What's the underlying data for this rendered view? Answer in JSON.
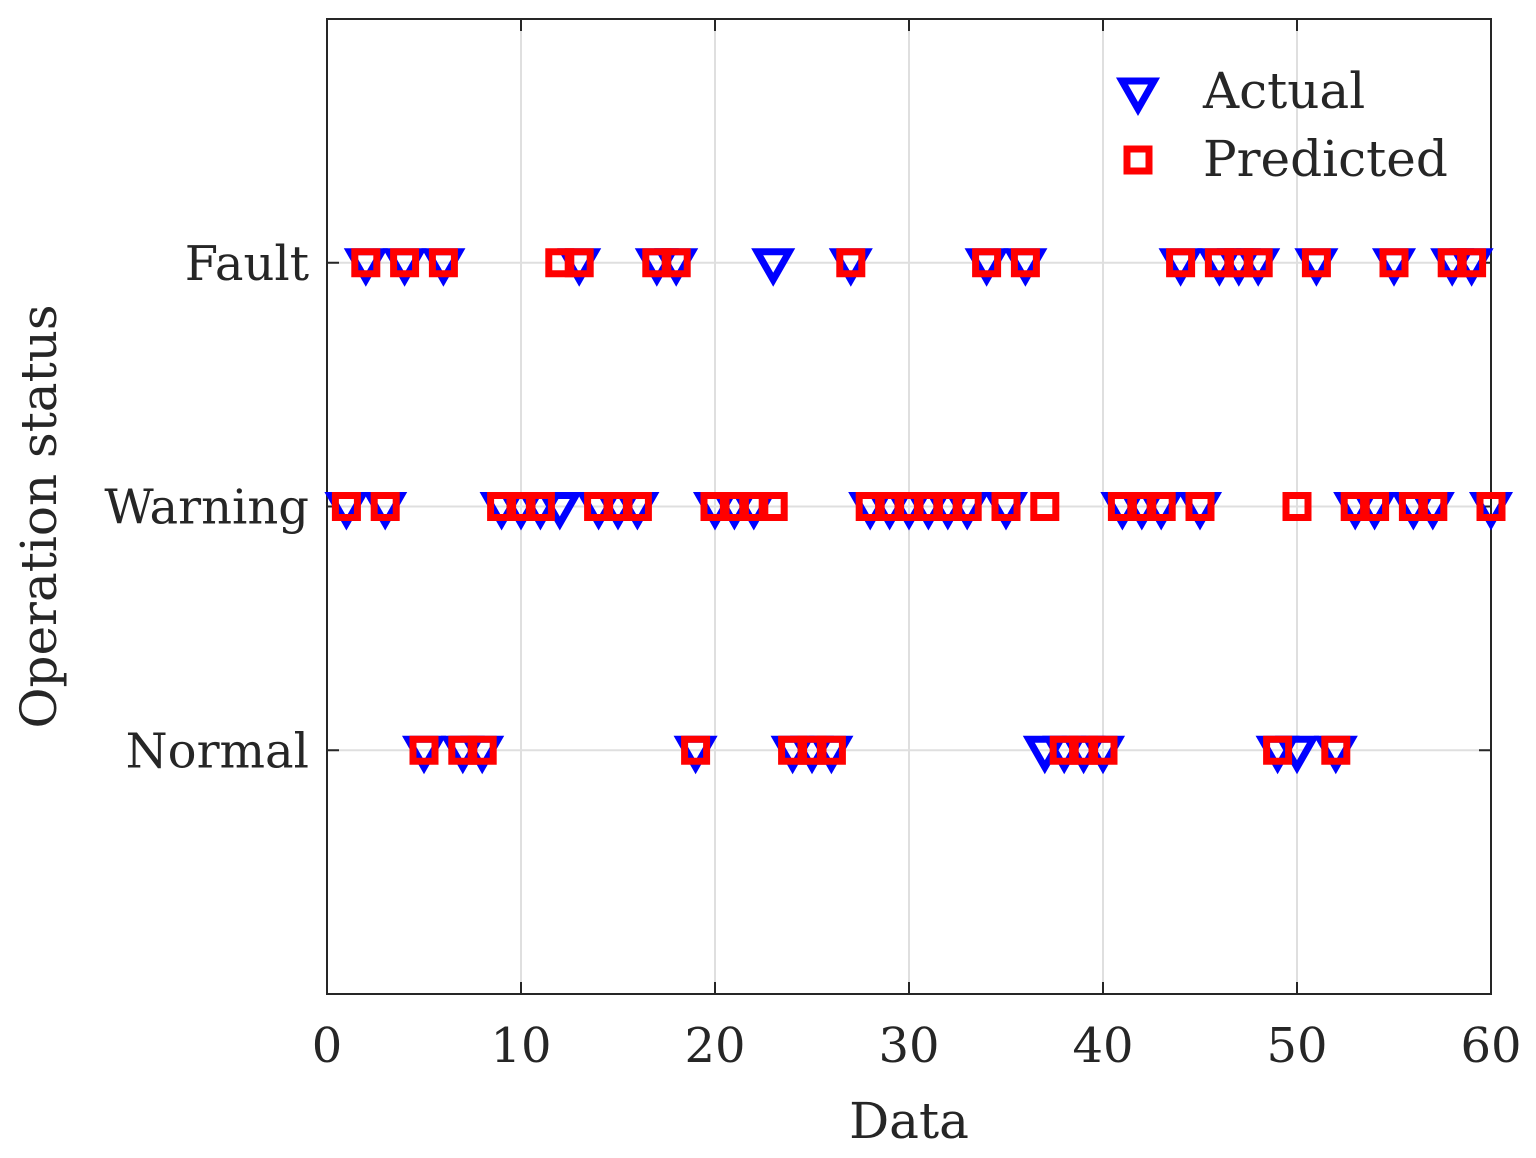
{
  "chart_data": {
    "type": "scatter",
    "title": "",
    "xlabel": "Data",
    "ylabel": "Operation status",
    "xlim": [
      0,
      60
    ],
    "ylim": [
      0,
      4
    ],
    "x_ticks": [
      0,
      10,
      20,
      30,
      40,
      50,
      60
    ],
    "y_ticks": [
      1,
      2,
      3
    ],
    "y_tick_labels": [
      "Normal",
      "Warning",
      "Fault"
    ],
    "grid": true,
    "legend_position": "top-right",
    "series": [
      {
        "name": "Actual",
        "marker": "triangle-down",
        "color": "#0000ff",
        "points": [
          [
            1,
            2
          ],
          [
            2,
            3
          ],
          [
            3,
            2
          ],
          [
            4,
            3
          ],
          [
            5,
            1
          ],
          [
            6,
            3
          ],
          [
            7,
            1
          ],
          [
            8,
            1
          ],
          [
            9,
            2
          ],
          [
            10,
            2
          ],
          [
            11,
            2
          ],
          [
            12,
            2
          ],
          [
            13,
            3
          ],
          [
            14,
            2
          ],
          [
            15,
            2
          ],
          [
            16,
            2
          ],
          [
            17,
            3
          ],
          [
            18,
            3
          ],
          [
            19,
            1
          ],
          [
            20,
            2
          ],
          [
            21,
            2
          ],
          [
            22,
            2
          ],
          [
            23,
            3
          ],
          [
            24,
            1
          ],
          [
            25,
            1
          ],
          [
            26,
            1
          ],
          [
            27,
            3
          ],
          [
            28,
            2
          ],
          [
            29,
            2
          ],
          [
            30,
            2
          ],
          [
            31,
            2
          ],
          [
            32,
            2
          ],
          [
            33,
            2
          ],
          [
            34,
            3
          ],
          [
            35,
            2
          ],
          [
            36,
            3
          ],
          [
            37,
            1
          ],
          [
            38,
            1
          ],
          [
            39,
            1
          ],
          [
            40,
            1
          ],
          [
            41,
            2
          ],
          [
            42,
            2
          ],
          [
            43,
            2
          ],
          [
            44,
            3
          ],
          [
            45,
            2
          ],
          [
            46,
            3
          ],
          [
            47,
            3
          ],
          [
            48,
            3
          ],
          [
            49,
            1
          ],
          [
            50,
            1
          ],
          [
            51,
            3
          ],
          [
            52,
            1
          ],
          [
            53,
            2
          ],
          [
            54,
            2
          ],
          [
            55,
            3
          ],
          [
            56,
            2
          ],
          [
            57,
            2
          ],
          [
            58,
            3
          ],
          [
            59,
            3
          ],
          [
            60,
            2
          ]
        ]
      },
      {
        "name": "Predicted",
        "marker": "square",
        "color": "#ff0000",
        "points": [
          [
            1,
            2
          ],
          [
            2,
            3
          ],
          [
            3,
            2
          ],
          [
            4,
            3
          ],
          [
            5,
            1
          ],
          [
            6,
            3
          ],
          [
            7,
            1
          ],
          [
            8,
            1
          ],
          [
            9,
            2
          ],
          [
            10,
            2
          ],
          [
            11,
            2
          ],
          [
            12,
            3
          ],
          [
            13,
            3
          ],
          [
            14,
            2
          ],
          [
            15,
            2
          ],
          [
            16,
            2
          ],
          [
            17,
            3
          ],
          [
            18,
            3
          ],
          [
            19,
            1
          ],
          [
            20,
            2
          ],
          [
            21,
            2
          ],
          [
            22,
            2
          ],
          [
            23,
            2
          ],
          [
            24,
            1
          ],
          [
            25,
            1
          ],
          [
            26,
            1
          ],
          [
            27,
            3
          ],
          [
            28,
            2
          ],
          [
            29,
            2
          ],
          [
            30,
            2
          ],
          [
            31,
            2
          ],
          [
            32,
            2
          ],
          [
            33,
            2
          ],
          [
            34,
            3
          ],
          [
            35,
            2
          ],
          [
            36,
            3
          ],
          [
            37,
            2
          ],
          [
            38,
            1
          ],
          [
            39,
            1
          ],
          [
            40,
            1
          ],
          [
            41,
            2
          ],
          [
            42,
            2
          ],
          [
            43,
            2
          ],
          [
            44,
            3
          ],
          [
            45,
            2
          ],
          [
            46,
            3
          ],
          [
            47,
            3
          ],
          [
            48,
            3
          ],
          [
            49,
            1
          ],
          [
            50,
            2
          ],
          [
            51,
            3
          ],
          [
            52,
            1
          ],
          [
            53,
            2
          ],
          [
            54,
            2
          ],
          [
            55,
            3
          ],
          [
            56,
            2
          ],
          [
            57,
            2
          ],
          [
            58,
            3
          ],
          [
            59,
            3
          ],
          [
            60,
            2
          ]
        ]
      }
    ]
  }
}
